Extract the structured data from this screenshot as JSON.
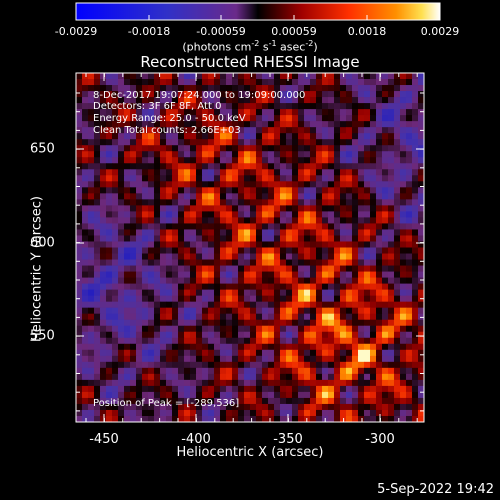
{
  "colorbar": {
    "tick_labels": [
      "-0.0029",
      "-0.0018",
      "-0.00059",
      "0.00059",
      "0.0018",
      "0.0029"
    ],
    "units": {
      "prefix": "(photons cm",
      "sup1": "-2",
      "mid1": " s",
      "sup2": "-1",
      "mid2": " asec",
      "sup3": "-2",
      "suffix": ")"
    }
  },
  "plot": {
    "title": "Reconstructed RHESSI Image",
    "xlabel": "Heliocentric X (arcsec)",
    "ylabel": "Heliocentric Y (arcsec)",
    "x_ticks": [
      "-450",
      "-400",
      "-350",
      "-300"
    ],
    "y_ticks": [
      "650",
      "600",
      "550"
    ],
    "info_lines": [
      " 8-Dec-2017 19:07:24.000 to 19:09:00.000",
      "Detectors: 3F 6F 8F, Att 0",
      "Energy Range: 25.0 - 50.0 keV",
      "Clean     Total counts: 2.66E+03"
    ],
    "peak_text": "Position of Peak = [-289,536]"
  },
  "footer": {
    "date": "5-Sep-2022 19:42"
  }
}
